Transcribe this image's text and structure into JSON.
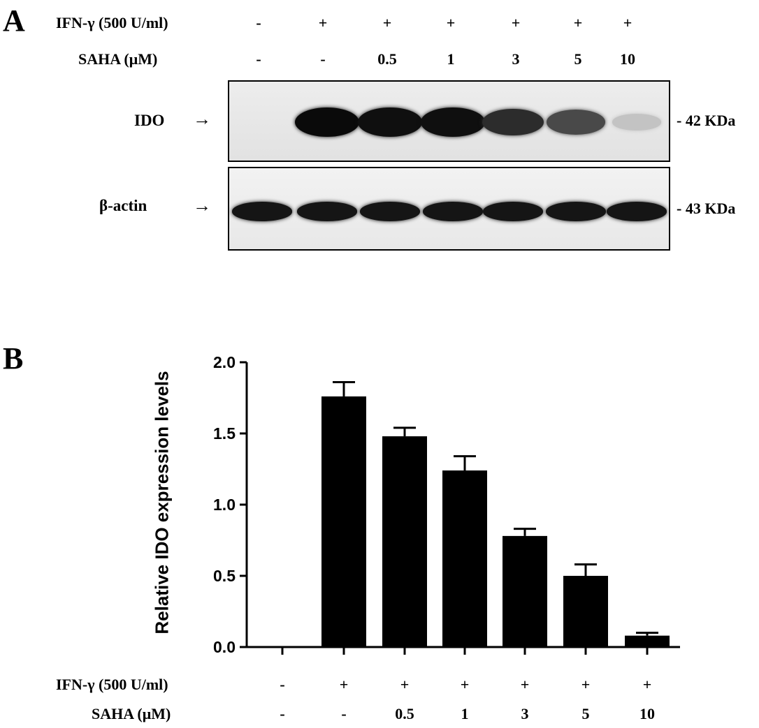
{
  "panel_a": {
    "letter": "A",
    "rows": [
      {
        "label": "IFN-γ (500 U/ml)",
        "values": [
          "-",
          "+",
          "+",
          "+",
          "+",
          "+",
          "+"
        ]
      },
      {
        "label": "SAHA (μM)",
        "values": [
          "-",
          "-",
          "0.5",
          "1",
          "3",
          "5",
          "10"
        ]
      }
    ],
    "blots": [
      {
        "label": "IDO",
        "arrow": "→",
        "marker": "- 42 KDa",
        "intensities": [
          0.0,
          1.0,
          0.98,
          0.98,
          0.85,
          0.72,
          0.18
        ]
      },
      {
        "label": "β-actin",
        "arrow": "→",
        "marker": "- 43 KDa",
        "intensities": [
          0.95,
          0.95,
          0.95,
          0.95,
          0.95,
          0.95,
          0.95
        ]
      }
    ]
  },
  "panel_b": {
    "letter": "B",
    "rows": [
      {
        "label": "IFN-γ (500 U/ml)",
        "values": [
          "-",
          "+",
          "+",
          "+",
          "+",
          "+",
          "+"
        ]
      },
      {
        "label": "SAHA (μM)",
        "values": [
          "-",
          "-",
          "0.5",
          "1",
          "3",
          "5",
          "10"
        ]
      }
    ]
  },
  "chart_data": {
    "type": "bar",
    "title": "",
    "xlabel": "",
    "ylabel": "Relative IDO expression levels",
    "categories": [
      "IFN-γ - / SAHA -",
      "IFN-γ + / SAHA -",
      "IFN-γ + / SAHA 0.5",
      "IFN-γ + / SAHA 1",
      "IFN-γ + / SAHA 3",
      "IFN-γ + / SAHA 5",
      "IFN-γ + / SAHA 10"
    ],
    "values": [
      0.0,
      1.76,
      1.48,
      1.24,
      0.78,
      0.5,
      0.08
    ],
    "errors": [
      0.0,
      0.1,
      0.06,
      0.1,
      0.05,
      0.08,
      0.02
    ],
    "ylim": [
      0,
      2.0
    ],
    "yticks": [
      "0.0",
      "0.5",
      "1.0",
      "1.5",
      "2.0"
    ],
    "bar_color": "#000000",
    "grid": false,
    "legend": "none"
  }
}
